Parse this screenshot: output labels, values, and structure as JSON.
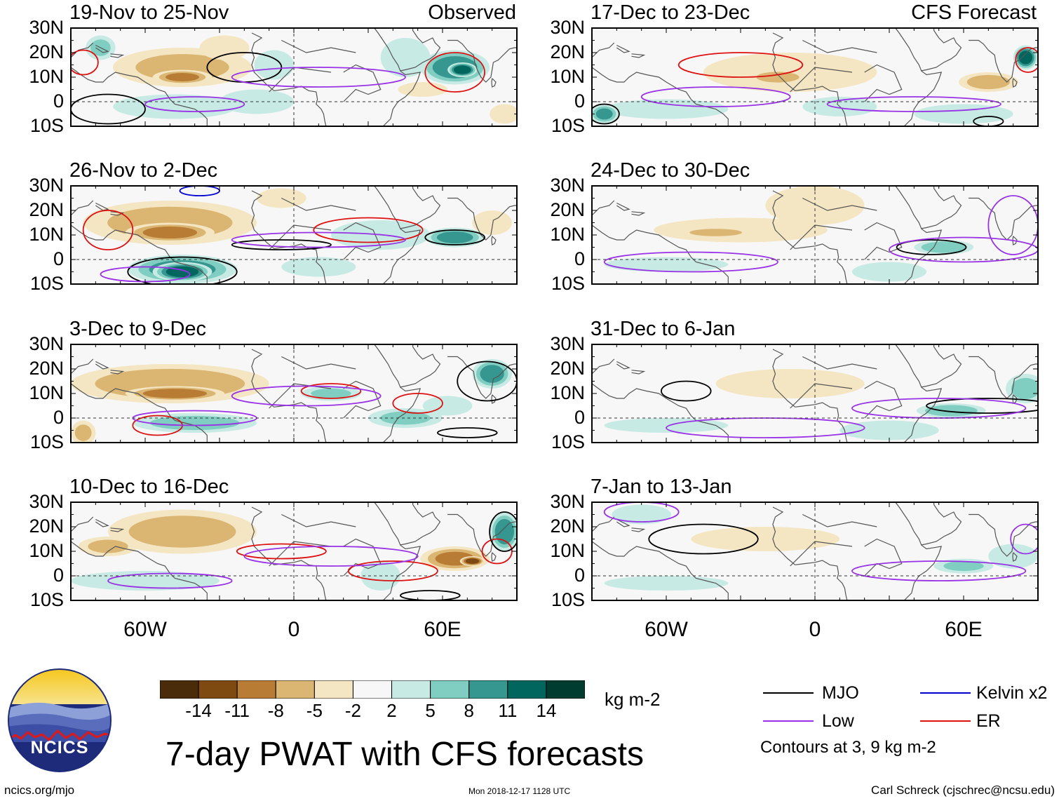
{
  "chart_data": {
    "type": "heatmap",
    "title": "7-day PWAT with CFS forecasts",
    "columns": [
      {
        "name": "observed",
        "label": "Observed"
      },
      {
        "name": "forecast",
        "label": "CFS Forecast"
      }
    ],
    "panels": [
      {
        "column": "observed",
        "title": "19-Nov to 25-Nov"
      },
      {
        "column": "observed",
        "title": "26-Nov to 2-Dec"
      },
      {
        "column": "observed",
        "title": "3-Dec to 9-Dec"
      },
      {
        "column": "observed",
        "title": "10-Dec to 16-Dec"
      },
      {
        "column": "forecast",
        "title": "17-Dec to 23-Dec"
      },
      {
        "column": "forecast",
        "title": "24-Dec to 30-Dec"
      },
      {
        "column": "forecast",
        "title": "31-Dec to 6-Jan"
      },
      {
        "column": "forecast",
        "title": "7-Jan to 13-Jan"
      }
    ],
    "lat_ticks": [
      "30N",
      "20N",
      "10N",
      "0",
      "10S"
    ],
    "lat_values": [
      30,
      20,
      10,
      0,
      -10
    ],
    "lon_ticks": [
      "60W",
      "0",
      "60E"
    ],
    "lon_values": [
      -60,
      0,
      60
    ],
    "xlim": [
      -90,
      90
    ],
    "ylim": [
      -10,
      30
    ],
    "colorbar": {
      "unit": "kg m-2",
      "ticks": [
        "-14",
        "-11",
        "-8",
        "-5",
        "-2",
        "2",
        "5",
        "8",
        "11",
        "14"
      ],
      "colors": [
        "#4a2c0a",
        "#7e4a12",
        "#b87c34",
        "#dbb673",
        "#f5e6c3",
        "#f7f7f7",
        "#c7eae4",
        "#80cdc1",
        "#35978f",
        "#01665e",
        "#003c30"
      ]
    },
    "contour_legend": [
      {
        "label": "MJO",
        "color": "#000000"
      },
      {
        "label": "Kelvin x2",
        "color": "#0000cc"
      },
      {
        "label": "Low",
        "color": "#9932e6"
      },
      {
        "label": "ER",
        "color": "#dd1111"
      }
    ],
    "contour_note": "Contours at 3, 9 kg m-2",
    "features": [
      [
        {
          "lon": -45,
          "lat": 14,
          "rx": 28,
          "ry": 8,
          "v": -6
        },
        {
          "lon": -28,
          "lat": 22,
          "rx": 10,
          "ry": 5,
          "v": -5
        },
        {
          "lon": -45,
          "lat": 10,
          "rx": 12,
          "ry": 3,
          "v": -9
        },
        {
          "lon": 65,
          "lat": 14,
          "rx": 14,
          "ry": 7,
          "v": 11
        },
        {
          "lon": 68,
          "lat": 13,
          "rx": 6,
          "ry": 3,
          "v": 14
        },
        {
          "lon": -48,
          "lat": -2,
          "rx": 25,
          "ry": 5,
          "v": 5
        },
        {
          "lon": -15,
          "lat": 0,
          "rx": 15,
          "ry": 5,
          "v": 5
        },
        {
          "lon": 45,
          "lat": 18,
          "rx": 10,
          "ry": 8,
          "v": 5
        },
        {
          "lon": 52,
          "lat": 5,
          "rx": 10,
          "ry": 3,
          "v": -5
        },
        {
          "lon": 85,
          "lat": -5,
          "rx": 6,
          "ry": 4,
          "v": -5
        },
        {
          "lon": -78,
          "lat": 22,
          "rx": 6,
          "ry": 5,
          "v": 6
        },
        {
          "lon": -8,
          "lat": 15,
          "rx": 8,
          "ry": 6,
          "v": 5
        }
      ],
      [
        {
          "lon": -50,
          "lat": 15,
          "rx": 35,
          "ry": 9,
          "v": -7
        },
        {
          "lon": -50,
          "lat": 11,
          "rx": 18,
          "ry": 4,
          "v": -10
        },
        {
          "lon": -45,
          "lat": -4,
          "rx": 22,
          "ry": 6,
          "v": 10
        },
        {
          "lon": -45,
          "lat": -5,
          "rx": 12,
          "ry": 4,
          "v": 13
        },
        {
          "lon": 65,
          "lat": 9,
          "rx": 12,
          "ry": 4,
          "v": 10
        },
        {
          "lon": 35,
          "lat": 10,
          "rx": 20,
          "ry": 6,
          "v": 5
        },
        {
          "lon": -5,
          "lat": 25,
          "rx": 10,
          "ry": 4,
          "v": -3
        },
        {
          "lon": 80,
          "lat": 15,
          "rx": 8,
          "ry": 5,
          "v": -4
        },
        {
          "lon": 10,
          "lat": -3,
          "rx": 15,
          "ry": 4,
          "v": 4
        }
      ],
      [
        {
          "lon": -50,
          "lat": 14,
          "rx": 40,
          "ry": 8,
          "v": -8
        },
        {
          "lon": -48,
          "lat": 10,
          "rx": 20,
          "ry": 3,
          "v": -11
        },
        {
          "lon": -40,
          "lat": -2,
          "rx": 25,
          "ry": 4,
          "v": 7
        },
        {
          "lon": -85,
          "lat": -6,
          "rx": 5,
          "ry": 5,
          "v": -6
        },
        {
          "lon": 80,
          "lat": 18,
          "rx": 8,
          "ry": 6,
          "v": 10
        },
        {
          "lon": 15,
          "lat": 10,
          "rx": 12,
          "ry": 3,
          "v": 6
        },
        {
          "lon": 45,
          "lat": 0,
          "rx": 15,
          "ry": 4,
          "v": 6
        },
        {
          "lon": 62,
          "lat": 5,
          "rx": 10,
          "ry": 4,
          "v": 5
        }
      ],
      [
        {
          "lon": -45,
          "lat": 18,
          "rx": 30,
          "ry": 9,
          "v": -7
        },
        {
          "lon": -75,
          "lat": 12,
          "rx": 12,
          "ry": 4,
          "v": -6
        },
        {
          "lon": 65,
          "lat": 7,
          "rx": 14,
          "ry": 5,
          "v": -9
        },
        {
          "lon": 72,
          "lat": 6,
          "rx": 5,
          "ry": 2,
          "v": -13
        },
        {
          "lon": -60,
          "lat": -2,
          "rx": 30,
          "ry": 4,
          "v": 5
        },
        {
          "lon": 85,
          "lat": 18,
          "rx": 6,
          "ry": 8,
          "v": 11
        },
        {
          "lon": 35,
          "lat": 0,
          "rx": 8,
          "ry": 6,
          "v": 5
        }
      ],
      [
        {
          "lon": -10,
          "lat": 12,
          "rx": 35,
          "ry": 8,
          "v": -5
        },
        {
          "lon": -15,
          "lat": 10,
          "rx": 12,
          "ry": 3,
          "v": -7
        },
        {
          "lon": 70,
          "lat": 8,
          "rx": 12,
          "ry": 4,
          "v": -7
        },
        {
          "lon": 85,
          "lat": 18,
          "rx": 5,
          "ry": 5,
          "v": 13
        },
        {
          "lon": -60,
          "lat": -3,
          "rx": 25,
          "ry": 4,
          "v": 4
        },
        {
          "lon": 60,
          "lat": -5,
          "rx": 20,
          "ry": 4,
          "v": 5
        },
        {
          "lon": -85,
          "lat": -5,
          "rx": 6,
          "ry": 4,
          "v": 9
        },
        {
          "lon": 10,
          "lat": -2,
          "rx": 15,
          "ry": 4,
          "v": 4
        }
      ],
      [
        {
          "lon": -30,
          "lat": 12,
          "rx": 35,
          "ry": 5,
          "v": -5
        },
        {
          "lon": -40,
          "lat": 11,
          "rx": 14,
          "ry": 2,
          "v": -8
        },
        {
          "lon": 0,
          "lat": 22,
          "rx": 20,
          "ry": 8,
          "v": -3
        },
        {
          "lon": 52,
          "lat": 5,
          "rx": 12,
          "ry": 3,
          "v": 8
        },
        {
          "lon": -60,
          "lat": -2,
          "rx": 25,
          "ry": 3,
          "v": 4
        },
        {
          "lon": 30,
          "lat": -5,
          "rx": 15,
          "ry": 4,
          "v": 4
        }
      ],
      [
        {
          "lon": -10,
          "lat": 14,
          "rx": 30,
          "ry": 6,
          "v": -3
        },
        {
          "lon": 55,
          "lat": 3,
          "rx": 14,
          "ry": 3,
          "v": 8
        },
        {
          "lon": 85,
          "lat": 12,
          "rx": 8,
          "ry": 6,
          "v": 7
        },
        {
          "lon": -60,
          "lat": -3,
          "rx": 25,
          "ry": 3,
          "v": 3
        },
        {
          "lon": 30,
          "lat": -5,
          "rx": 20,
          "ry": 4,
          "v": 4
        }
      ],
      [
        {
          "lon": -20,
          "lat": 15,
          "rx": 30,
          "ry": 5,
          "v": -3
        },
        {
          "lon": 60,
          "lat": 4,
          "rx": 12,
          "ry": 3,
          "v": 6
        },
        {
          "lon": 80,
          "lat": 8,
          "rx": 10,
          "ry": 5,
          "v": 5
        },
        {
          "lon": -60,
          "lat": -3,
          "rx": 25,
          "ry": 3,
          "v": 4
        },
        {
          "lon": -70,
          "lat": 25,
          "rx": 12,
          "ry": 4,
          "v": 4
        }
      ]
    ],
    "contours": [
      [
        {
          "type": "MJO",
          "lon": -20,
          "lat": 14,
          "rx": 15,
          "ry": 6
        },
        {
          "type": "MJO",
          "lon": -75,
          "lat": -3,
          "rx": 15,
          "ry": 6
        },
        {
          "type": "ER",
          "lon": 65,
          "lat": 12,
          "rx": 12,
          "ry": 8
        },
        {
          "type": "ER",
          "lon": -85,
          "lat": 16,
          "rx": 6,
          "ry": 5
        },
        {
          "type": "Low",
          "lon": 10,
          "lat": 10,
          "rx": 35,
          "ry": 4
        },
        {
          "type": "Low",
          "lon": -40,
          "lat": -1,
          "rx": 20,
          "ry": 3
        }
      ],
      [
        {
          "type": "MJO",
          "lon": -5,
          "lat": 6,
          "rx": 20,
          "ry": 2
        },
        {
          "type": "MJO",
          "lon": 65,
          "lat": 9,
          "rx": 12,
          "ry": 3
        },
        {
          "type": "MJO",
          "lon": -45,
          "lat": -5,
          "rx": 22,
          "ry": 6
        },
        {
          "type": "ER",
          "lon": 30,
          "lat": 12,
          "rx": 22,
          "ry": 5
        },
        {
          "type": "ER",
          "lon": -75,
          "lat": 12,
          "rx": 10,
          "ry": 8
        },
        {
          "type": "Kelvin x2",
          "lon": -38,
          "lat": 28,
          "rx": 8,
          "ry": 2
        },
        {
          "type": "Low",
          "lon": 10,
          "lat": 8,
          "rx": 35,
          "ry": 3
        },
        {
          "type": "Low",
          "lon": -60,
          "lat": -6,
          "rx": 18,
          "ry": 3
        }
      ],
      [
        {
          "type": "MJO",
          "lon": 78,
          "lat": 15,
          "rx": 12,
          "ry": 8
        },
        {
          "type": "MJO",
          "lon": 70,
          "lat": -6,
          "rx": 12,
          "ry": 2
        },
        {
          "type": "ER",
          "lon": 15,
          "lat": 11,
          "rx": 12,
          "ry": 3
        },
        {
          "type": "ER",
          "lon": -55,
          "lat": -3,
          "rx": 10,
          "ry": 4
        },
        {
          "type": "ER",
          "lon": 50,
          "lat": 6,
          "rx": 10,
          "ry": 4
        },
        {
          "type": "Low",
          "lon": 5,
          "lat": 9,
          "rx": 30,
          "ry": 4
        },
        {
          "type": "Low",
          "lon": -40,
          "lat": 0,
          "rx": 25,
          "ry": 3
        }
      ],
      [
        {
          "type": "ER",
          "lon": -5,
          "lat": 10,
          "rx": 18,
          "ry": 3
        },
        {
          "type": "ER",
          "lon": 40,
          "lat": 2,
          "rx": 18,
          "ry": 4
        },
        {
          "type": "ER",
          "lon": 82,
          "lat": 10,
          "rx": 6,
          "ry": 5
        },
        {
          "type": "MJO",
          "lon": 85,
          "lat": 18,
          "rx": 6,
          "ry": 8
        },
        {
          "type": "MJO",
          "lon": 55,
          "lat": -8,
          "rx": 12,
          "ry": 2
        },
        {
          "type": "Low",
          "lon": 15,
          "lat": 8,
          "rx": 35,
          "ry": 4
        },
        {
          "type": "Low",
          "lon": -50,
          "lat": -2,
          "rx": 25,
          "ry": 3
        }
      ],
      [
        {
          "type": "ER",
          "lon": -30,
          "lat": 15,
          "rx": 25,
          "ry": 5
        },
        {
          "type": "ER",
          "lon": 86,
          "lat": 17,
          "rx": 5,
          "ry": 5
        },
        {
          "type": "MJO",
          "lon": -85,
          "lat": -5,
          "rx": 6,
          "ry": 4
        },
        {
          "type": "MJO",
          "lon": 70,
          "lat": -8,
          "rx": 6,
          "ry": 2
        },
        {
          "type": "Low",
          "lon": 40,
          "lat": -1,
          "rx": 35,
          "ry": 3
        },
        {
          "type": "Low",
          "lon": -40,
          "lat": 2,
          "rx": 30,
          "ry": 4
        }
      ],
      [
        {
          "type": "MJO",
          "lon": 47,
          "lat": 5,
          "rx": 14,
          "ry": 3
        },
        {
          "type": "Low",
          "lon": 60,
          "lat": 4,
          "rx": 30,
          "ry": 5
        },
        {
          "type": "Low",
          "lon": -50,
          "lat": -1,
          "rx": 35,
          "ry": 4
        },
        {
          "type": "Low",
          "lon": 80,
          "lat": 14,
          "rx": 10,
          "ry": 12
        }
      ],
      [
        {
          "type": "MJO",
          "lon": -52,
          "lat": 11,
          "rx": 10,
          "ry": 4
        },
        {
          "type": "MJO",
          "lon": 70,
          "lat": 5,
          "rx": 25,
          "ry": 3
        },
        {
          "type": "Low",
          "lon": 50,
          "lat": 4,
          "rx": 35,
          "ry": 4
        },
        {
          "type": "Low",
          "lon": -20,
          "lat": -4,
          "rx": 40,
          "ry": 4
        }
      ],
      [
        {
          "type": "MJO",
          "lon": -45,
          "lat": 15,
          "rx": 22,
          "ry": 6
        },
        {
          "type": "Low",
          "lon": -70,
          "lat": 26,
          "rx": 15,
          "ry": 4
        },
        {
          "type": "Low",
          "lon": 50,
          "lat": 2,
          "rx": 35,
          "ry": 4
        },
        {
          "type": "Low",
          "lon": 85,
          "lat": 15,
          "rx": 6,
          "ry": 6
        }
      ]
    ]
  },
  "footer": {
    "logo_text": "NCICS",
    "url": "ncics.org/mjo",
    "timestamp": "Mon 2018-12-17 1128 UTC",
    "credit": "Carl Schreck (cjschrec@ncsu.edu)"
  }
}
